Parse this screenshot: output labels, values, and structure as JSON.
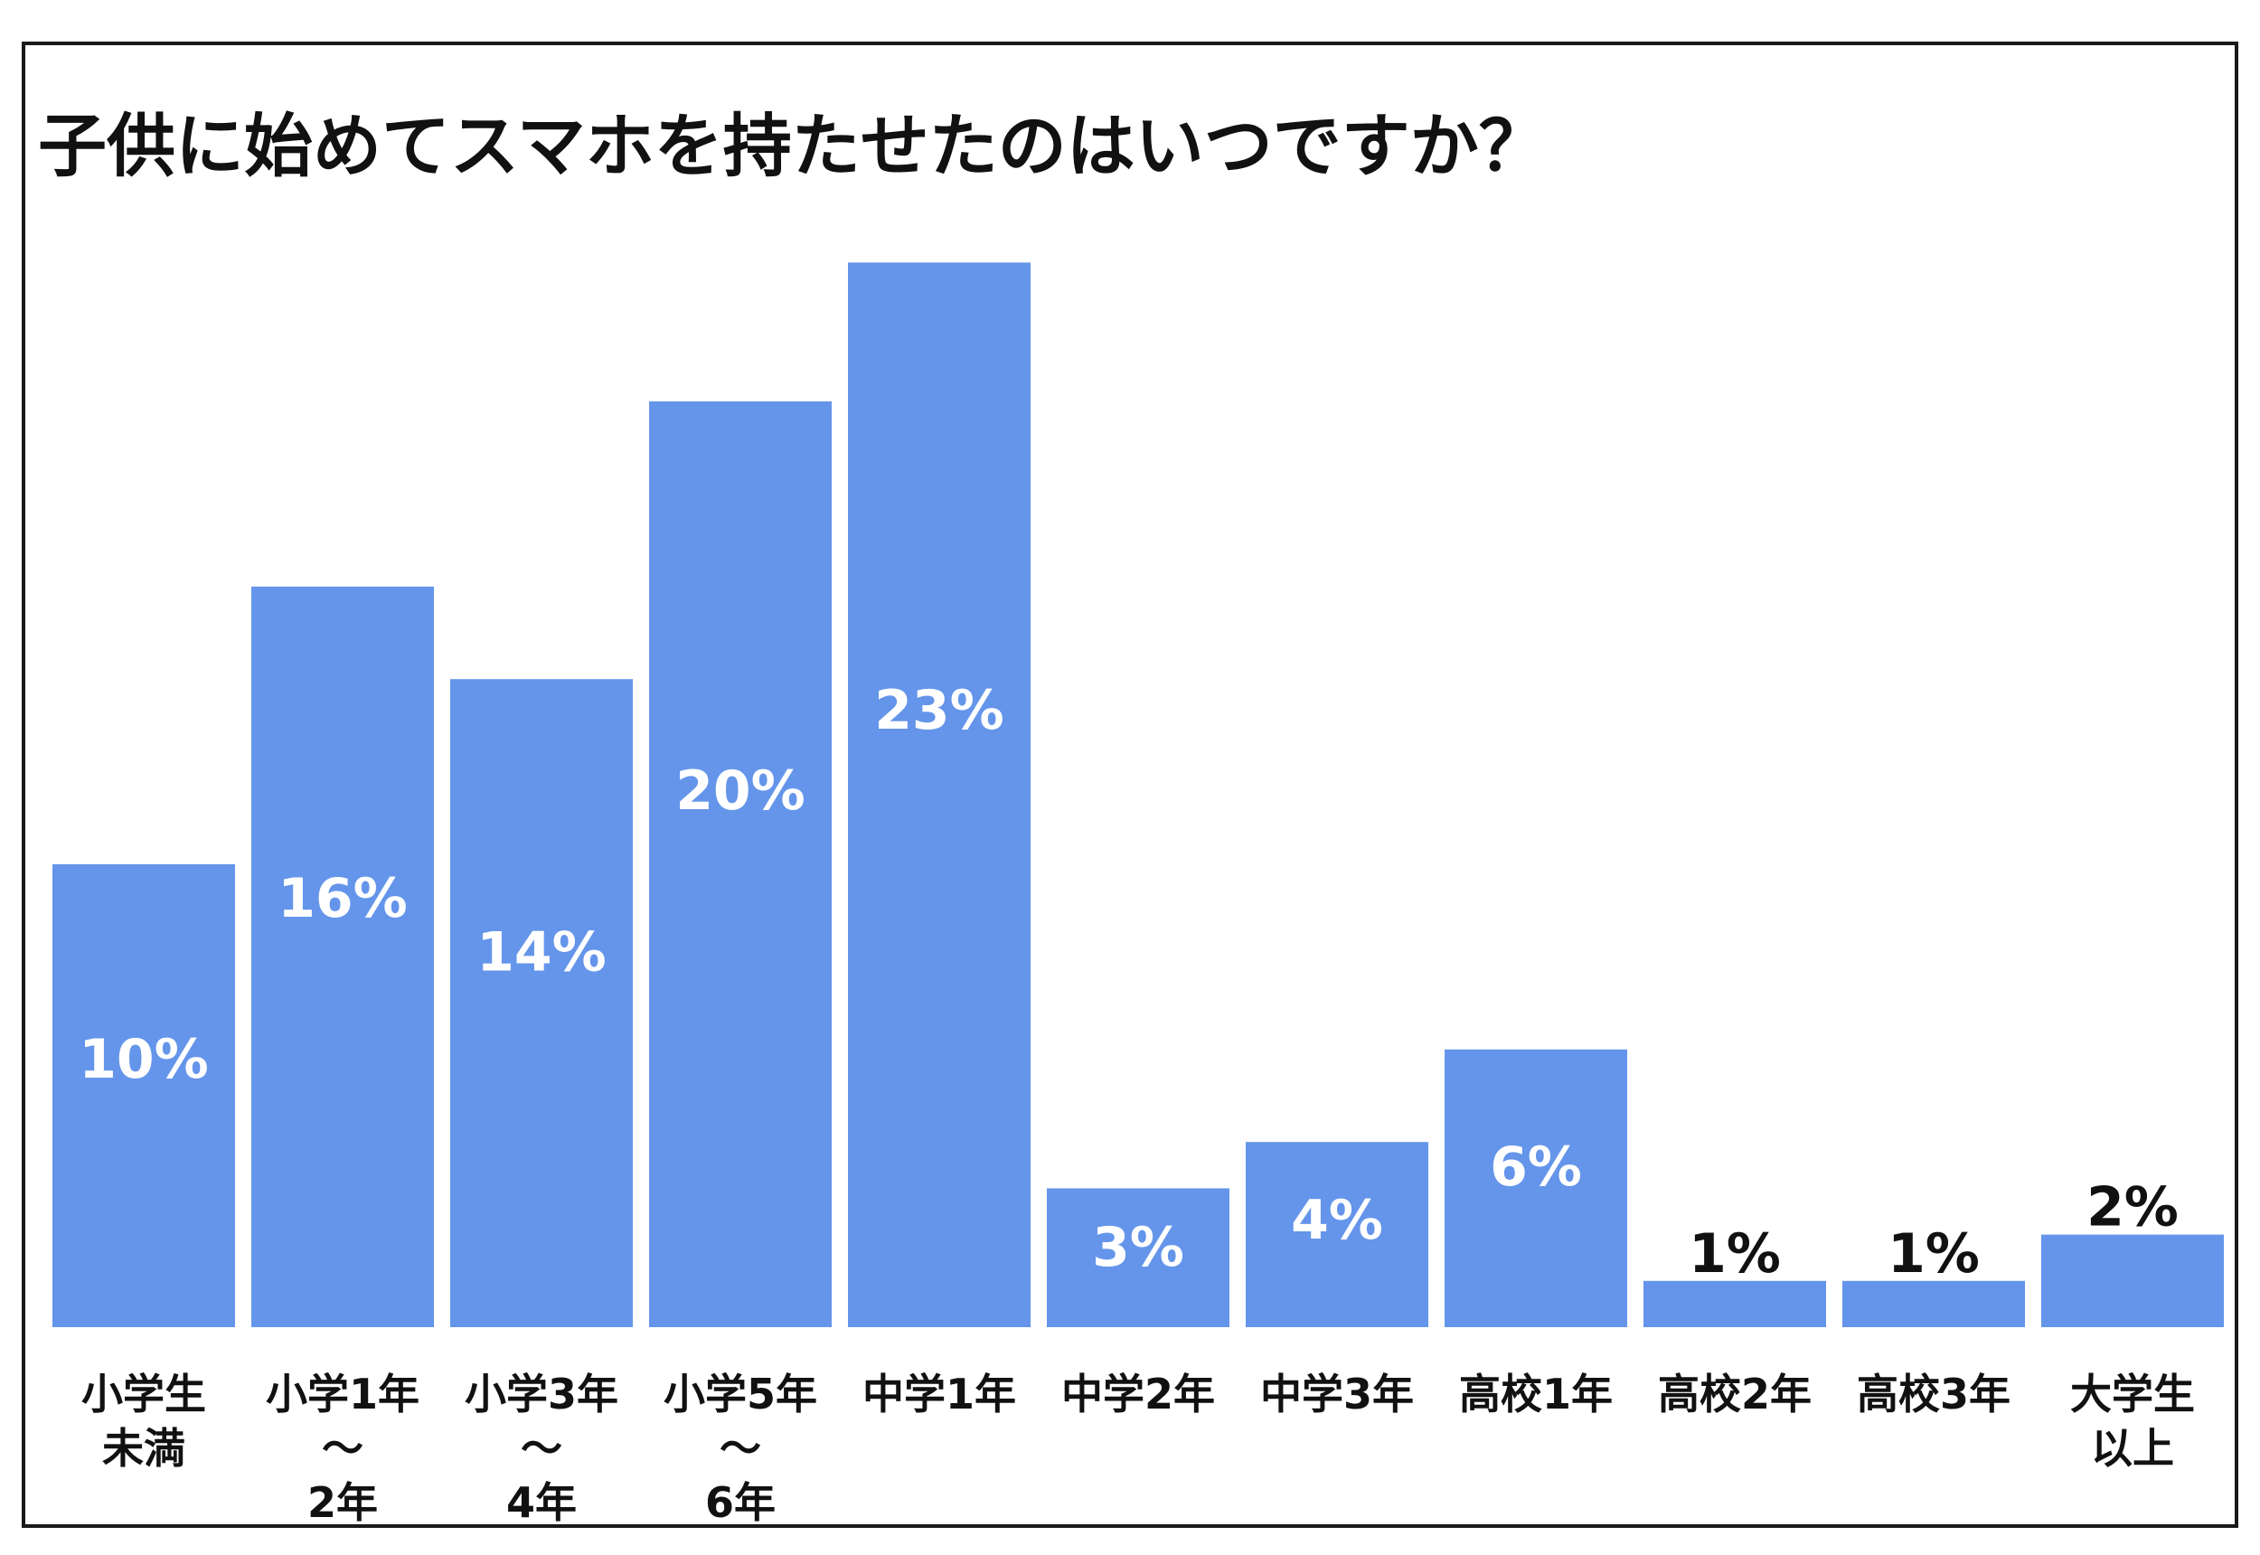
{
  "chart_data": {
    "type": "bar",
    "title": "子供に始めてスマホを持たせたのはいつですか？",
    "categories": [
      "小学生\n未満",
      "小学1年\n～\n2年",
      "小学3年\n～\n4年",
      "小学5年\n～\n6年",
      "中学1年",
      "中学2年",
      "中学3年",
      "高校1年",
      "高校2年",
      "高校3年",
      "大学生\n以上"
    ],
    "values": [
      10,
      16,
      14,
      20,
      23,
      3,
      4,
      6,
      1,
      1,
      2
    ],
    "value_labels": [
      "10%",
      "16%",
      "14%",
      "20%",
      "23%",
      "3%",
      "4%",
      "6%",
      "1%",
      "1%",
      "2%"
    ],
    "xlabel": "",
    "ylabel": "",
    "ylim": [
      0,
      25
    ],
    "grid": false,
    "legend": "none",
    "colors": {
      "bar": "#6495ea",
      "label_inside": "#ffffff",
      "label_outside": "#111111"
    }
  }
}
